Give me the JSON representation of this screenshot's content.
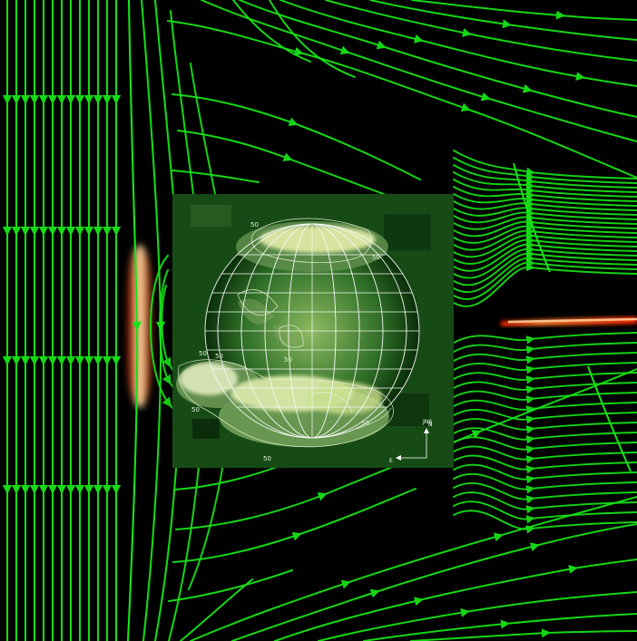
{
  "figure": {
    "field_line_color": "#17e317",
    "background_color": "#000000",
    "current_sheet_colors": [
      "#ff2a00",
      "#ffae3a",
      "#fff3c0"
    ],
    "arrow_icon": "arrowhead-icon"
  },
  "inset": {
    "contour_labels": [
      "50",
      "50",
      "50",
      "50",
      "50",
      "50",
      "50",
      "50"
    ],
    "direction_labels": {
      "north": "N",
      "east": "E"
    },
    "scale_text": "JN6"
  }
}
